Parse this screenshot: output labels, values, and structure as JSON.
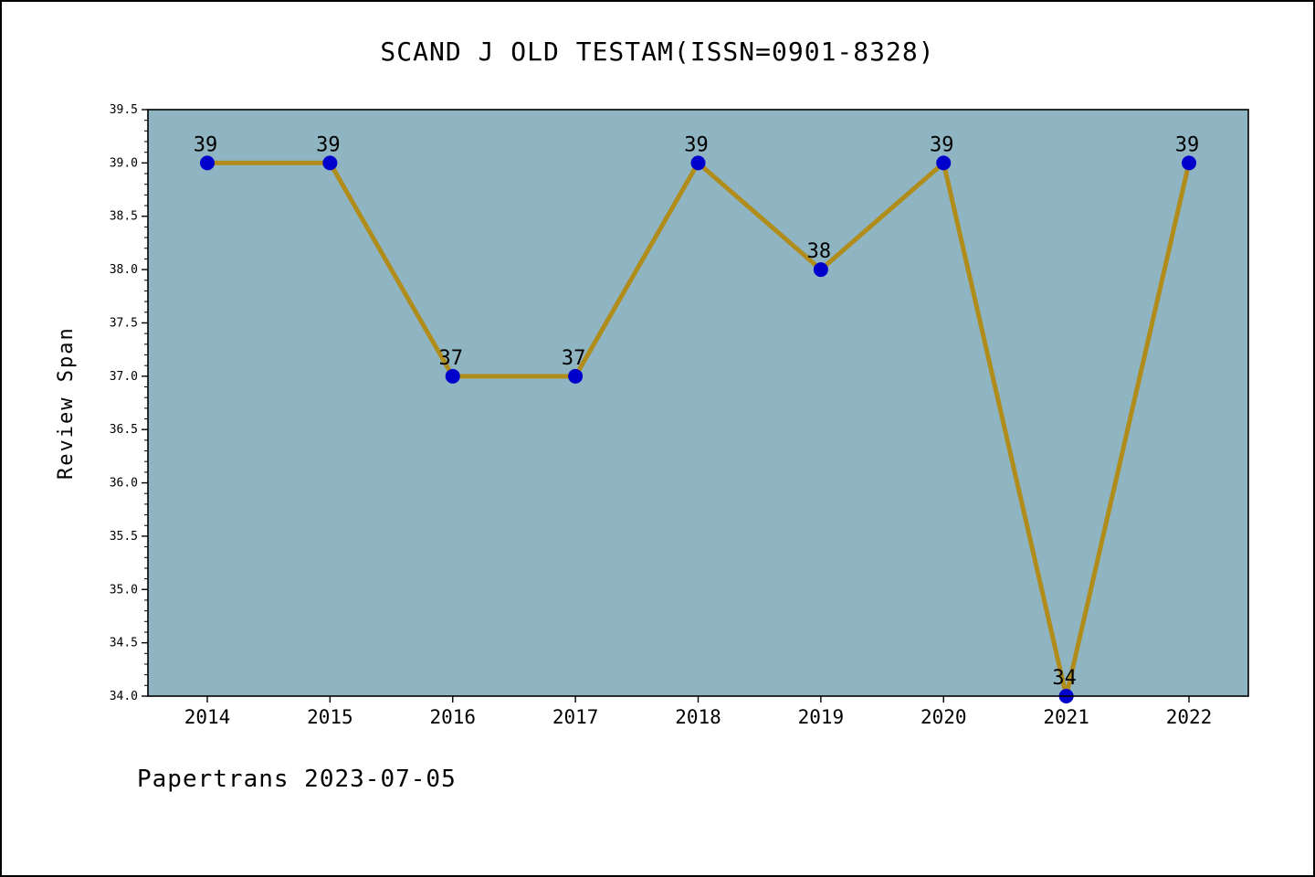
{
  "figure": {
    "footer": "Papertrans 2023-07-05"
  },
  "chart_data": {
    "type": "line",
    "title": "SCAND J OLD TESTAM(ISSN=0901-8328)",
    "categories": [
      "2014",
      "2015",
      "2016",
      "2017",
      "2018",
      "2019",
      "2020",
      "2021",
      "2022"
    ],
    "values": [
      39,
      39,
      37,
      37,
      39,
      38,
      39,
      34,
      39
    ],
    "xlabel": "",
    "ylabel": "Review Span",
    "ylim": [
      34.0,
      39.5
    ],
    "ytick_step": 0.5,
    "ytick_minor_step": 0.1,
    "ytick_label_format": "one-decimal",
    "grid": false,
    "legend": false,
    "point_labels": true,
    "colors": {
      "plot_bg": "#8fb4c2",
      "line": "#b08d1b",
      "marker": "#0000cd",
      "frame": "#000000",
      "text": "#000000",
      "page_bg": "#ffffff"
    }
  }
}
